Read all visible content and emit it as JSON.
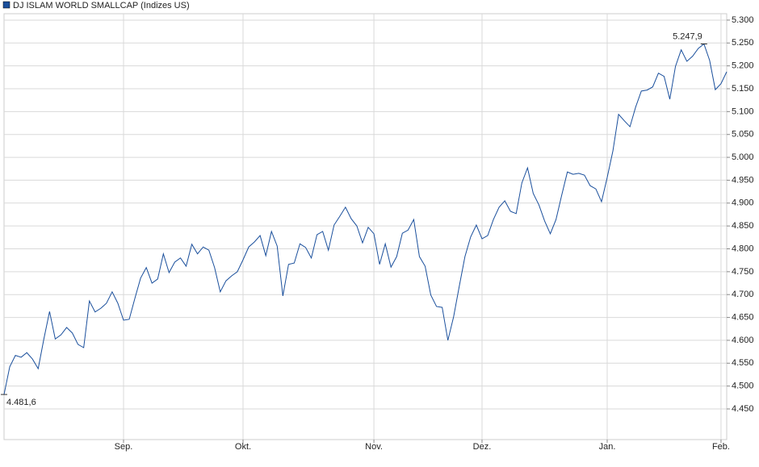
{
  "chart_data": {
    "type": "line",
    "title": "DJ ISLAM WORLD SMALLCAP (Indizes US)",
    "series": [
      {
        "name": "DJ ISLAM WORLD SMALLCAP (Indizes US)",
        "color": "#1a4f9c",
        "values": [
          4481.6,
          4542,
          4567,
          4563,
          4573,
          4559,
          4538,
          4603,
          4663,
          4603,
          4612,
          4628,
          4616,
          4591,
          4584,
          4686,
          4662,
          4670,
          4681,
          4706,
          4681,
          4644,
          4646,
          4692,
          4736,
          4759,
          4725,
          4734,
          4789,
          4748,
          4771,
          4780,
          4762,
          4810,
          4789,
          4804,
          4797,
          4759,
          4706,
          4730,
          4741,
          4750,
          4776,
          4804,
          4815,
          4829,
          4785,
          4838,
          4806,
          4697,
          4766,
          4769,
          4811,
          4803,
          4780,
          4831,
          4838,
          4797,
          4852,
          4871,
          4891,
          4866,
          4850,
          4813,
          4847,
          4833,
          4766,
          4811,
          4760,
          4783,
          4834,
          4841,
          4864,
          4783,
          4762,
          4699,
          4674,
          4672,
          4600,
          4651,
          4718,
          4783,
          4826,
          4852,
          4822,
          4829,
          4864,
          4891,
          4905,
          4882,
          4877,
          4944,
          4977,
          4921,
          4896,
          4861,
          4833,
          4864,
          4917,
          4968,
          4963,
          4965,
          4961,
          4938,
          4931,
          4903,
          4956,
          5014,
          5094,
          5080,
          5067,
          5110,
          5145,
          5147,
          5154,
          5184,
          5177,
          5127,
          5199,
          5235,
          5210,
          5221,
          5238,
          5247.9,
          5212,
          5148,
          5161,
          5187
        ]
      }
    ],
    "annotations": [
      {
        "text": "4.481,6",
        "value": 4481.6
      },
      {
        "text": "5.247,9",
        "value": 5247.9
      }
    ],
    "xlim": [
      0,
      127
    ],
    "xticks": [
      {
        "value": 21,
        "label": "Sep."
      },
      {
        "value": 42,
        "label": "Okt."
      },
      {
        "value": 65,
        "label": "Nov."
      },
      {
        "value": 84,
        "label": "Dez."
      },
      {
        "value": 106,
        "label": "Jan."
      },
      {
        "value": 126,
        "label": "Feb."
      }
    ],
    "ylim": [
      4383,
      5314
    ],
    "yticks": [
      {
        "value": 4450,
        "label": "4.450"
      },
      {
        "value": 4500,
        "label": "4.500"
      },
      {
        "value": 4550,
        "label": "4.550"
      },
      {
        "value": 4600,
        "label": "4.600"
      },
      {
        "value": 4650,
        "label": "4.650"
      },
      {
        "value": 4700,
        "label": "4.700"
      },
      {
        "value": 4750,
        "label": "4.750"
      },
      {
        "value": 4800,
        "label": "4.800"
      },
      {
        "value": 4850,
        "label": "4.850"
      },
      {
        "value": 4900,
        "label": "4.900"
      },
      {
        "value": 4950,
        "label": "4.950"
      },
      {
        "value": 5000,
        "label": "5.000"
      },
      {
        "value": 5050,
        "label": "5.050"
      },
      {
        "value": 5100,
        "label": "5.100"
      },
      {
        "value": 5150,
        "label": "5.150"
      },
      {
        "value": 5200,
        "label": "5.200"
      },
      {
        "value": 5250,
        "label": "5.250"
      },
      {
        "value": 5300,
        "label": "5.300"
      }
    ],
    "grid": true
  }
}
